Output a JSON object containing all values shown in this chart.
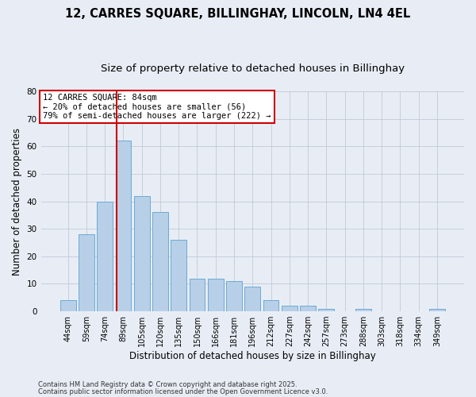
{
  "title_line1": "12, CARRES SQUARE, BILLINGHAY, LINCOLN, LN4 4EL",
  "title_line2": "Size of property relative to detached houses in Billinghay",
  "xlabel": "Distribution of detached houses by size in Billinghay",
  "ylabel": "Number of detached properties",
  "categories": [
    "44sqm",
    "59sqm",
    "74sqm",
    "89sqm",
    "105sqm",
    "120sqm",
    "135sqm",
    "150sqm",
    "166sqm",
    "181sqm",
    "196sqm",
    "212sqm",
    "227sqm",
    "242sqm",
    "257sqm",
    "273sqm",
    "288sqm",
    "303sqm",
    "318sqm",
    "334sqm",
    "349sqm"
  ],
  "values": [
    4,
    28,
    40,
    62,
    42,
    36,
    26,
    12,
    12,
    11,
    9,
    4,
    2,
    2,
    1,
    0,
    1,
    0,
    0,
    0,
    1
  ],
  "bar_color": "#b8cfe8",
  "bar_edge_color": "#6aaad4",
  "property_bin_index": 2.65,
  "annotation_line1": "12 CARRES SQUARE: 84sqm",
  "annotation_line2": "← 20% of detached houses are smaller (56)",
  "annotation_line3": "79% of semi-detached houses are larger (222) →",
  "annotation_box_color": "#ffffff",
  "annotation_box_edge_color": "#cc0000",
  "vline_color": "#cc0000",
  "ylim": [
    0,
    80
  ],
  "yticks": [
    0,
    10,
    20,
    30,
    40,
    50,
    60,
    70,
    80
  ],
  "background_color": "#e8edf5",
  "footer_line1": "Contains HM Land Registry data © Crown copyright and database right 2025.",
  "footer_line2": "Contains public sector information licensed under the Open Government Licence v3.0.",
  "title_fontsize": 10.5,
  "subtitle_fontsize": 9.5,
  "axis_label_fontsize": 8.5,
  "tick_fontsize": 7,
  "annotation_fontsize": 7.5,
  "footer_fontsize": 6
}
